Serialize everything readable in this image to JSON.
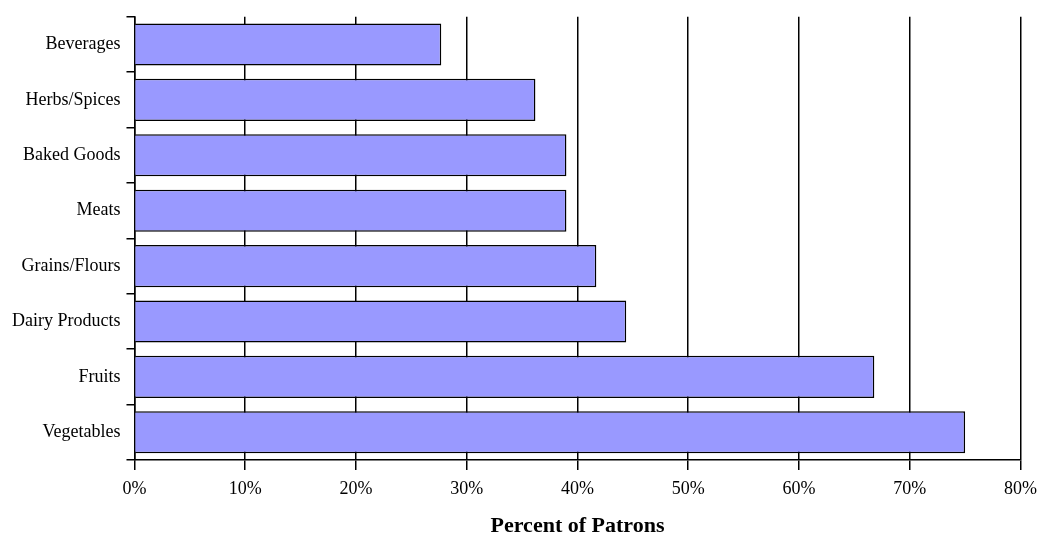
{
  "chart_data": {
    "type": "bar",
    "orientation": "horizontal",
    "xlabel": "Percent of Patrons",
    "categories": [
      "Beverages",
      "Herbs/Spices",
      "Baked Goods",
      "Meats",
      "Grains/Flours",
      "Dairy Products",
      "Fruits",
      "Vegetables"
    ],
    "values": [
      27.7,
      36.2,
      39.0,
      39.0,
      41.7,
      44.4,
      66.8,
      75.0
    ],
    "color": "#9999ff",
    "xlim": [
      0,
      80
    ],
    "xticks": [
      {
        "value": 0,
        "label": "0%"
      },
      {
        "value": 10,
        "label": "10%"
      },
      {
        "value": 20,
        "label": "20%"
      },
      {
        "value": 30,
        "label": "30%"
      },
      {
        "value": 40,
        "label": "40%"
      },
      {
        "value": 50,
        "label": "50%"
      },
      {
        "value": 60,
        "label": "60%"
      },
      {
        "value": 70,
        "label": "70%"
      },
      {
        "value": 80,
        "label": "80%"
      }
    ],
    "grid": "x",
    "legend": false
  }
}
